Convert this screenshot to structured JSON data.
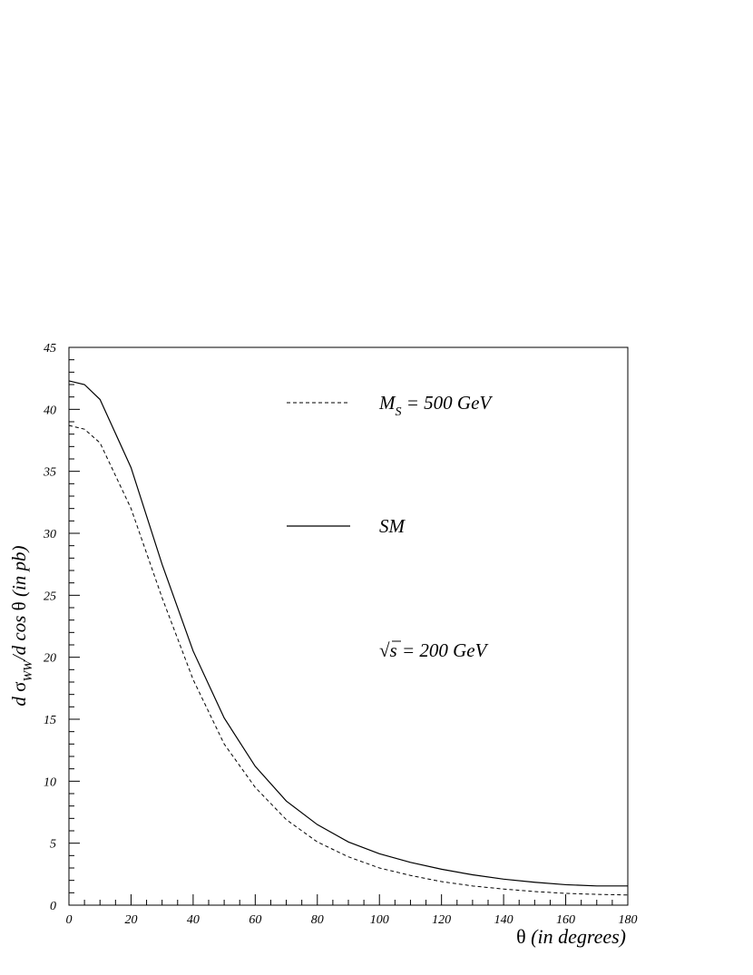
{
  "chart_data": {
    "type": "line",
    "title": "",
    "xlabel": {
      "symbol": "θ",
      "text": " (in degrees)"
    },
    "ylabel": {
      "d1": "d ",
      "sigma": "σ",
      "sub": "WW",
      "mid": "/d cos ",
      "theta": "θ",
      "tail": " (in pb)"
    },
    "xlim": [
      0,
      180
    ],
    "ylim": [
      0,
      45
    ],
    "xticks": [
      0,
      20,
      40,
      60,
      80,
      100,
      120,
      140,
      160,
      180
    ],
    "yticks": [
      0,
      5,
      10,
      15,
      20,
      25,
      30,
      35,
      40,
      45
    ],
    "grid": false,
    "legend_position": "top-right",
    "series": [
      {
        "name": "M_S = 500 GeV",
        "legend": {
          "main": "M",
          "sub": "S",
          "rest": " = 500 GeV"
        },
        "style": "dashed",
        "x": [
          0,
          5,
          10,
          20,
          30,
          40,
          50,
          60,
          70,
          80,
          90,
          100,
          110,
          120,
          130,
          140,
          150,
          160,
          170,
          180
        ],
        "y": [
          38.7,
          38.4,
          37.3,
          32.0,
          24.8,
          18.2,
          13.0,
          9.5,
          6.9,
          5.1,
          3.9,
          3.0,
          2.4,
          1.9,
          1.55,
          1.3,
          1.1,
          0.95,
          0.87,
          0.82
        ]
      },
      {
        "name": "SM",
        "legend": {
          "main": "SM",
          "sub": "",
          "rest": ""
        },
        "style": "solid",
        "x": [
          0,
          5,
          10,
          20,
          30,
          40,
          50,
          60,
          70,
          80,
          90,
          100,
          110,
          120,
          130,
          140,
          150,
          160,
          170,
          180
        ],
        "y": [
          42.3,
          42.0,
          40.8,
          35.3,
          27.5,
          20.5,
          15.1,
          11.2,
          8.4,
          6.5,
          5.1,
          4.15,
          3.45,
          2.9,
          2.45,
          2.1,
          1.85,
          1.65,
          1.55,
          1.55
        ]
      }
    ],
    "annotations": [
      {
        "sqrt": "√",
        "s": "s",
        "rest": " = 200 GeV"
      }
    ]
  }
}
